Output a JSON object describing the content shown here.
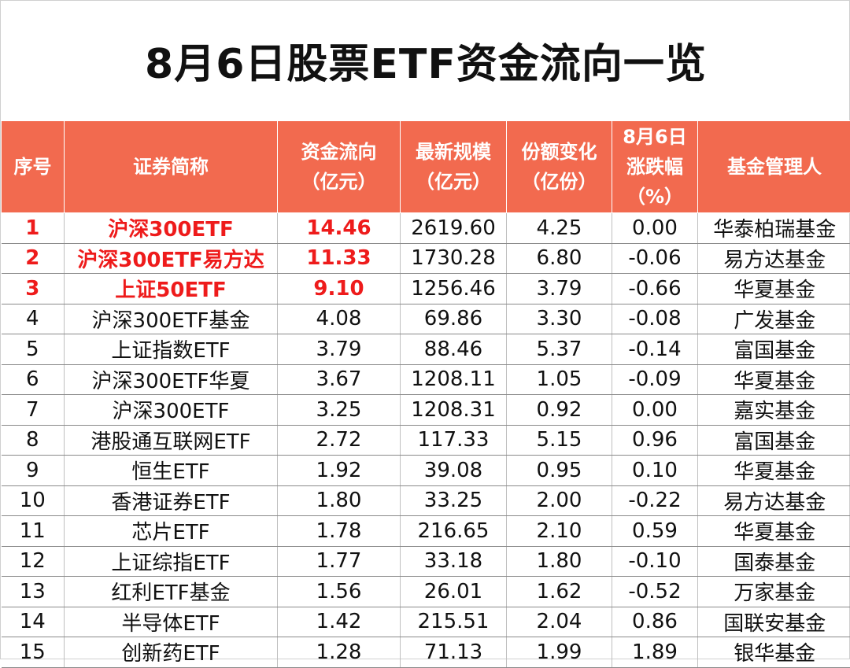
{
  "title": "8月6日股票ETF资金流向一览",
  "headers": [
    {
      "l1": "序号",
      "l2": "",
      "l3": ""
    },
    {
      "l1": "证券简称",
      "l2": "",
      "l3": ""
    },
    {
      "l1": "资金流向",
      "l2": "（亿元）",
      "l3": ""
    },
    {
      "l1": "最新规模",
      "l2": "（亿元）",
      "l3": ""
    },
    {
      "l1": "份额变化",
      "l2": "（亿份）",
      "l3": ""
    },
    {
      "l1": "8月6日",
      "l2": "涨跌幅",
      "l3": "（%）"
    },
    {
      "l1": "基金管理人",
      "l2": "",
      "l3": ""
    }
  ],
  "rows": [
    {
      "no": "1",
      "name": "沪深300ETF",
      "flow": "14.46",
      "scale": "2619.60",
      "share": "4.25",
      "chg": "0.00",
      "mgr": "华泰柏瑞基金"
    },
    {
      "no": "2",
      "name": "沪深300ETF易方达",
      "flow": "11.33",
      "scale": "1730.28",
      "share": "6.80",
      "chg": "-0.06",
      "mgr": "易方达基金"
    },
    {
      "no": "3",
      "name": "上证50ETF",
      "flow": "9.10",
      "scale": "1256.46",
      "share": "3.79",
      "chg": "-0.66",
      "mgr": "华夏基金"
    },
    {
      "no": "4",
      "name": "沪深300ETF基金",
      "flow": "4.08",
      "scale": "69.86",
      "share": "3.30",
      "chg": "-0.08",
      "mgr": "广发基金"
    },
    {
      "no": "5",
      "name": "上证指数ETF",
      "flow": "3.79",
      "scale": "88.46",
      "share": "5.37",
      "chg": "-0.14",
      "mgr": "富国基金"
    },
    {
      "no": "6",
      "name": "沪深300ETF华夏",
      "flow": "3.67",
      "scale": "1208.11",
      "share": "1.05",
      "chg": "-0.09",
      "mgr": "华夏基金"
    },
    {
      "no": "7",
      "name": "沪深300ETF",
      "flow": "3.25",
      "scale": "1208.31",
      "share": "0.92",
      "chg": "0.00",
      "mgr": "嘉实基金"
    },
    {
      "no": "8",
      "name": "港股通互联网ETF",
      "flow": "2.72",
      "scale": "117.33",
      "share": "5.15",
      "chg": "0.96",
      "mgr": "富国基金"
    },
    {
      "no": "9",
      "name": "恒生ETF",
      "flow": "1.92",
      "scale": "39.08",
      "share": "0.95",
      "chg": "0.10",
      "mgr": "华夏基金"
    },
    {
      "no": "10",
      "name": "香港证券ETF",
      "flow": "1.80",
      "scale": "33.25",
      "share": "2.00",
      "chg": "-0.22",
      "mgr": "易方达基金"
    },
    {
      "no": "11",
      "name": "芯片ETF",
      "flow": "1.78",
      "scale": "216.65",
      "share": "2.10",
      "chg": "0.59",
      "mgr": "华夏基金"
    },
    {
      "no": "12",
      "name": "上证综指ETF",
      "flow": "1.77",
      "scale": "33.18",
      "share": "1.80",
      "chg": "-0.10",
      "mgr": "国泰基金"
    },
    {
      "no": "13",
      "name": "红利ETF基金",
      "flow": "1.56",
      "scale": "26.01",
      "share": "1.62",
      "chg": "-0.52",
      "mgr": "万家基金"
    },
    {
      "no": "14",
      "name": "半导体ETF",
      "flow": "1.42",
      "scale": "215.51",
      "share": "2.04",
      "chg": "0.86",
      "mgr": "国联安基金"
    },
    {
      "no": "15",
      "name": "创新药ETF",
      "flow": "1.28",
      "scale": "71.13",
      "share": "1.99",
      "chg": "1.89",
      "mgr": "银华基金"
    }
  ],
  "highlight_color": "#ee1b1b",
  "header_color": "#f26a4f"
}
